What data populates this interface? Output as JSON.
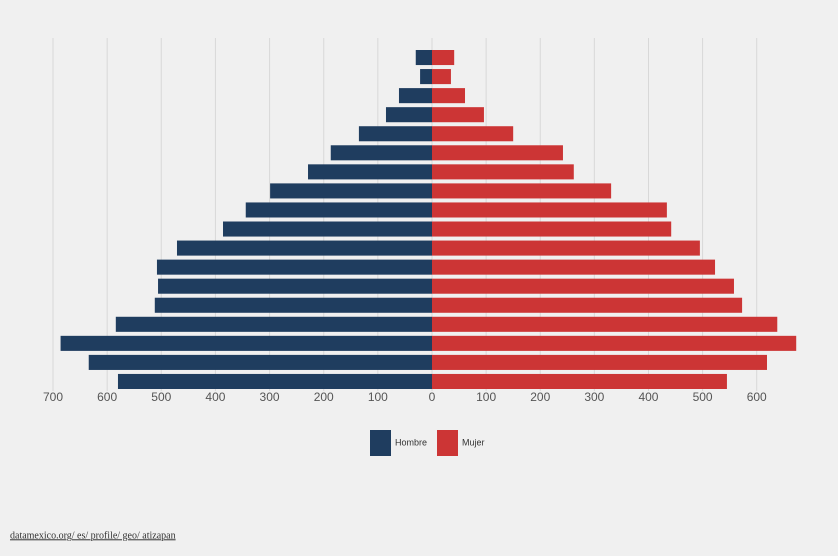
{
  "chart_data": {
    "type": "pyramid",
    "series": [
      {
        "name": "Hombre",
        "color": "#1f3d5f",
        "side": "left",
        "values": [
          30,
          22,
          61,
          85,
          135,
          187,
          229,
          299,
          344,
          386,
          471,
          508,
          506,
          512,
          584,
          686,
          634,
          580
        ]
      },
      {
        "name": "Mujer",
        "color": "#cc3535",
        "side": "right",
        "values": [
          41,
          35,
          61,
          96,
          150,
          242,
          262,
          331,
          434,
          442,
          495,
          523,
          558,
          573,
          638,
          673,
          619,
          545
        ]
      }
    ],
    "xlim_left": [
      0,
      700
    ],
    "xticks_left": [
      700,
      600,
      500,
      400,
      300,
      200,
      100
    ],
    "xlim": [
      0,
      680
    ],
    "xticks": [
      0,
      100,
      200,
      300,
      400,
      500,
      600
    ],
    "grid": true,
    "source": "datamexico.org/ es/ profile/ geo/ atizapan"
  }
}
